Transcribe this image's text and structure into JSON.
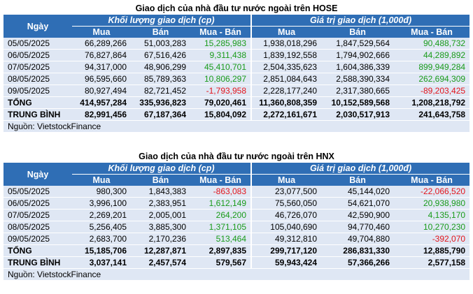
{
  "hose": {
    "title": "Giao dịch của nhà đầu tư nước ngoài trên HOSE",
    "col_date": "Ngày",
    "group_volume": "Khối lượng giao dịch (cp)",
    "group_value": "Giá trị giao dịch (1,000đ)",
    "sub": [
      "Mua",
      "Bán",
      "Mua - Bán",
      "Mua",
      "Bán",
      "Mua - Bán"
    ],
    "rows": [
      [
        "05/05/2025",
        "66,289,266",
        "51,003,283",
        "15,285,983",
        "1,938,018,296",
        "1,847,529,564",
        "90,488,732"
      ],
      [
        "06/05/2025",
        "76,827,864",
        "67,516,426",
        "9,311,438",
        "1,839,192,558",
        "1,794,902,666",
        "44,289,892"
      ],
      [
        "07/05/2025",
        "94,317,000",
        "48,906,299",
        "45,410,701",
        "2,504,335,623",
        "1,604,386,339",
        "899,949,284"
      ],
      [
        "08/05/2025",
        "96,595,660",
        "85,789,363",
        "10,806,297",
        "2,851,084,643",
        "2,588,390,334",
        "262,694,309"
      ],
      [
        "09/05/2025",
        "80,927,494",
        "82,721,452",
        "-1,793,958",
        "2,228,177,240",
        "2,317,380,665",
        "-89,203,425"
      ]
    ],
    "total": [
      "TỔNG",
      "414,957,284",
      "335,936,823",
      "79,020,461",
      "11,360,808,359",
      "10,152,589,568",
      "1,208,218,792"
    ],
    "average": [
      "TRUNG BÌNH",
      "82,991,456",
      "67,187,364",
      "15,804,092",
      "2,272,161,671",
      "2,030,517,913",
      "241,643,758"
    ],
    "source": "Nguồn: VietstockFinance"
  },
  "hnx": {
    "title": "Giao dịch của nhà đầu tư nước ngoài trên HNX",
    "col_date": "Ngày",
    "group_volume": "Khối lượng giao dịch (cp)",
    "group_value": "Giá trị giao dịch (1,000đ)",
    "sub": [
      "Mua",
      "Bán",
      "Mua - Bán",
      "Mua",
      "Bán",
      "Mua - Bán"
    ],
    "rows": [
      [
        "05/05/2025",
        "980,300",
        "1,843,383",
        "-863,083",
        "23,077,500",
        "45,144,020",
        "-22,066,520"
      ],
      [
        "06/05/2025",
        "3,996,100",
        "2,383,951",
        "1,612,149",
        "75,560,050",
        "54,621,070",
        "20,938,980"
      ],
      [
        "07/05/2025",
        "2,269,201",
        "2,005,001",
        "264,200",
        "46,726,070",
        "42,590,900",
        "4,135,170"
      ],
      [
        "08/05/2025",
        "5,256,405",
        "3,885,300",
        "1,371,105",
        "105,040,690",
        "94,770,460",
        "10,270,230"
      ],
      [
        "09/05/2025",
        "2,683,700",
        "2,170,236",
        "513,464",
        "49,312,810",
        "49,704,880",
        "-392,070"
      ]
    ],
    "total": [
      "TỔNG",
      "15,185,706",
      "12,287,871",
      "2,897,835",
      "299,717,120",
      "286,831,330",
      "12,885,790"
    ],
    "average": [
      "TRUNG BÌNH",
      "3,037,141",
      "2,457,574",
      "579,567",
      "59,943,424",
      "57,366,266",
      "2,577,158"
    ],
    "source": "Nguồn: VietstockFinance"
  },
  "colors": {
    "header_bg": "#2f6eb5",
    "row_bg": "#dfe7f4",
    "positive": "#199b1a",
    "negative": "#e2141b"
  }
}
